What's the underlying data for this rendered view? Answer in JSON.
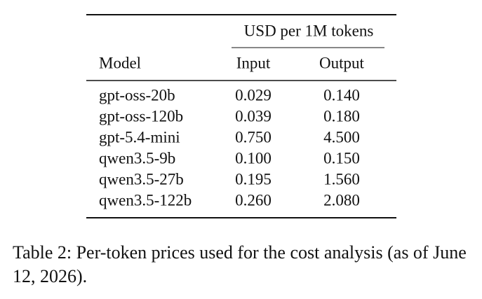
{
  "table": {
    "group_header": "USD per 1M tokens",
    "columns": [
      "Model",
      "Input",
      "Output"
    ],
    "rows": [
      [
        "gpt-oss-20b",
        "0.029",
        "0.140"
      ],
      [
        "gpt-oss-120b",
        "0.039",
        "0.180"
      ],
      [
        "gpt-5.4-mini",
        "0.750",
        "4.500"
      ],
      [
        "qwen3.5-9b",
        "0.100",
        "0.150"
      ],
      [
        "qwen3.5-27b",
        "0.195",
        "1.560"
      ],
      [
        "qwen3.5-122b",
        "0.260",
        "2.080"
      ]
    ]
  },
  "caption": "Table 2: Per-token prices used for the cost analysis (as of June 12, 2026)."
}
